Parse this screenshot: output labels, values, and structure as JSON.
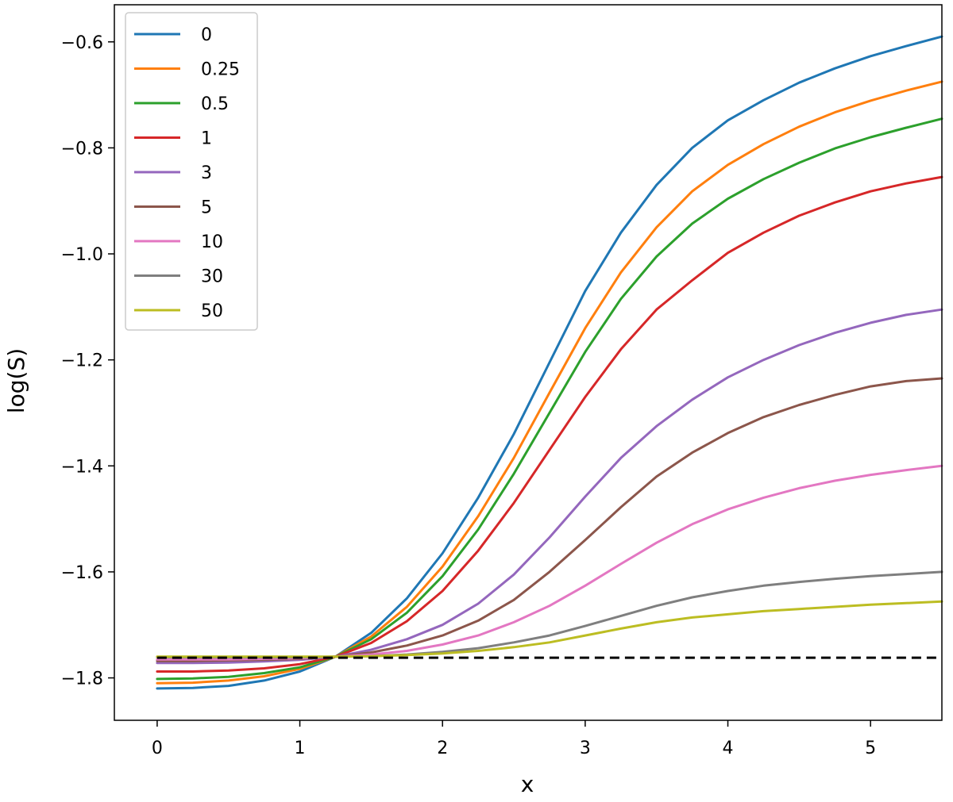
{
  "chart_data": {
    "type": "line",
    "title": "",
    "xlabel": "x",
    "ylabel": "log(S)",
    "xlim": [
      -0.3,
      5.5
    ],
    "ylim": [
      -1.88,
      -0.53
    ],
    "x_ticks": [
      {
        "value": 0,
        "label": "0"
      },
      {
        "value": 1,
        "label": "1"
      },
      {
        "value": 2,
        "label": "2"
      },
      {
        "value": 3,
        "label": "3"
      },
      {
        "value": 4,
        "label": "4"
      },
      {
        "value": 5,
        "label": "5"
      }
    ],
    "y_ticks": [
      {
        "value": -0.6,
        "label": "−0.6"
      },
      {
        "value": -0.8,
        "label": "−0.8"
      },
      {
        "value": -1.0,
        "label": "−1.0"
      },
      {
        "value": -1.2,
        "label": "−1.2"
      },
      {
        "value": -1.4,
        "label": "−1.4"
      },
      {
        "value": -1.6,
        "label": "−1.6"
      },
      {
        "value": -1.8,
        "label": "−1.8"
      }
    ],
    "grid": false,
    "legend_position": "top-left",
    "x": [
      0,
      0.25,
      0.5,
      0.75,
      1,
      1.25,
      1.5,
      1.75,
      2,
      2.25,
      2.5,
      2.75,
      3,
      3.25,
      3.5,
      3.75,
      4,
      4.25,
      4.5,
      4.75,
      5,
      5.25,
      5.5
    ],
    "series": [
      {
        "name": "0",
        "color": "#1f77b4",
        "values": [
          -1.82,
          -1.819,
          -1.815,
          -1.805,
          -1.788,
          -1.76,
          -1.715,
          -1.65,
          -1.565,
          -1.46,
          -1.34,
          -1.205,
          -1.07,
          -0.96,
          -0.87,
          -0.8,
          -0.748,
          -0.71,
          -0.677,
          -0.65,
          -0.627,
          -0.608,
          -0.59
        ]
      },
      {
        "name": "0.25",
        "color": "#ff7f0e",
        "values": [
          -1.81,
          -1.809,
          -1.805,
          -1.797,
          -1.783,
          -1.76,
          -1.722,
          -1.666,
          -1.59,
          -1.495,
          -1.385,
          -1.262,
          -1.14,
          -1.035,
          -0.95,
          -0.882,
          -0.832,
          -0.793,
          -0.76,
          -0.733,
          -0.711,
          -0.692,
          -0.675
        ]
      },
      {
        "name": "0.5",
        "color": "#2ca02c",
        "values": [
          -1.802,
          -1.801,
          -1.798,
          -1.791,
          -1.78,
          -1.76,
          -1.727,
          -1.677,
          -1.608,
          -1.52,
          -1.415,
          -1.3,
          -1.185,
          -1.085,
          -1.005,
          -0.943,
          -0.896,
          -0.859,
          -0.828,
          -0.801,
          -0.78,
          -0.762,
          -0.745
        ]
      },
      {
        "name": "1",
        "color": "#d62728",
        "values": [
          -1.788,
          -1.788,
          -1.786,
          -1.782,
          -1.774,
          -1.76,
          -1.734,
          -1.693,
          -1.636,
          -1.56,
          -1.47,
          -1.37,
          -1.27,
          -1.18,
          -1.105,
          -1.05,
          -0.998,
          -0.96,
          -0.928,
          -0.903,
          -0.882,
          -0.867,
          -0.855
        ]
      },
      {
        "name": "3",
        "color": "#9467bd",
        "values": [
          -1.772,
          -1.772,
          -1.771,
          -1.769,
          -1.766,
          -1.76,
          -1.747,
          -1.727,
          -1.7,
          -1.66,
          -1.605,
          -1.535,
          -1.458,
          -1.385,
          -1.325,
          -1.275,
          -1.233,
          -1.2,
          -1.172,
          -1.149,
          -1.13,
          -1.115,
          -1.105
        ]
      },
      {
        "name": "5",
        "color": "#8c564b",
        "values": [
          -1.768,
          -1.768,
          -1.767,
          -1.766,
          -1.764,
          -1.76,
          -1.752,
          -1.739,
          -1.72,
          -1.692,
          -1.653,
          -1.6,
          -1.54,
          -1.478,
          -1.42,
          -1.375,
          -1.338,
          -1.308,
          -1.285,
          -1.266,
          -1.25,
          -1.24,
          -1.235
        ]
      },
      {
        "name": "10",
        "color": "#e377c2",
        "values": [
          -1.765,
          -1.765,
          -1.765,
          -1.764,
          -1.763,
          -1.76,
          -1.756,
          -1.749,
          -1.737,
          -1.72,
          -1.695,
          -1.664,
          -1.626,
          -1.585,
          -1.545,
          -1.51,
          -1.482,
          -1.46,
          -1.442,
          -1.428,
          -1.417,
          -1.408,
          -1.4
        ]
      },
      {
        "name": "30",
        "color": "#7f7f7f",
        "values": [
          -1.761,
          -1.761,
          -1.761,
          -1.761,
          -1.761,
          -1.76,
          -1.759,
          -1.756,
          -1.751,
          -1.744,
          -1.733,
          -1.72,
          -1.702,
          -1.683,
          -1.664,
          -1.648,
          -1.636,
          -1.626,
          -1.619,
          -1.613,
          -1.608,
          -1.604,
          -1.6
        ]
      },
      {
        "name": "50",
        "color": "#bcbd22",
        "values": [
          -1.76,
          -1.76,
          -1.76,
          -1.76,
          -1.76,
          -1.76,
          -1.759,
          -1.757,
          -1.754,
          -1.749,
          -1.742,
          -1.733,
          -1.72,
          -1.707,
          -1.695,
          -1.686,
          -1.68,
          -1.674,
          -1.67,
          -1.666,
          -1.662,
          -1.659,
          -1.656
        ]
      }
    ],
    "reference_line": {
      "y": -1.762,
      "style": "dashed",
      "color": "#000000"
    }
  }
}
